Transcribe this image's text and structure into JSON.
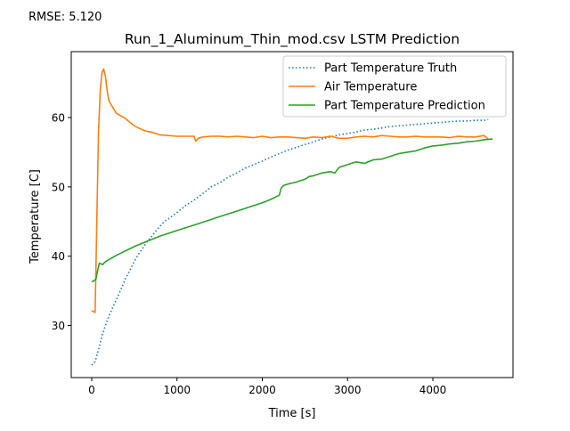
{
  "annotation": "RMSE: 5.120",
  "chart_data": {
    "type": "line",
    "title": "Run_1_Aluminum_Thin_mod.csv LSTM Prediction",
    "xlabel": "Time [s]",
    "ylabel": "Temperature [C]",
    "xlim": [
      -240,
      4940
    ],
    "ylim": [
      22.5,
      69.5
    ],
    "xticks": [
      0,
      1000,
      2000,
      3000,
      4000
    ],
    "yticks": [
      30,
      40,
      50,
      60
    ],
    "legend_position": "top-right",
    "grid": false,
    "series": [
      {
        "name": "Part Temperature Truth",
        "color": "#1f77b4",
        "style": "dotted",
        "x": [
          0,
          40,
          80,
          120,
          160,
          200,
          250,
          300,
          350,
          400,
          450,
          500,
          550,
          600,
          650,
          700,
          750,
          800,
          850,
          900,
          1000,
          1100,
          1200,
          1300,
          1400,
          1500,
          1600,
          1700,
          1800,
          1900,
          2000,
          2100,
          2200,
          2300,
          2400,
          2500,
          2600,
          2700,
          2800,
          2900,
          3000,
          3100,
          3200,
          3300,
          3400,
          3500,
          3600,
          3700,
          3800,
          3900,
          4000,
          4100,
          4200,
          4300,
          4400,
          4500,
          4600,
          4650
        ],
        "y": [
          24.3,
          24.8,
          26.5,
          28.5,
          30.0,
          31.3,
          32.7,
          34.0,
          35.4,
          36.9,
          38.0,
          39.3,
          40.3,
          41.2,
          42.1,
          42.8,
          43.6,
          44.3,
          45.0,
          45.4,
          46.3,
          47.3,
          48.1,
          49.0,
          50.0,
          50.6,
          51.4,
          52.0,
          52.7,
          53.2,
          53.7,
          54.3,
          54.8,
          55.3,
          55.7,
          56.1,
          56.5,
          56.9,
          57.2,
          57.5,
          57.7,
          57.9,
          58.2,
          58.3,
          58.5,
          58.7,
          58.8,
          58.9,
          59.0,
          59.1,
          59.2,
          59.3,
          59.4,
          59.5,
          59.5,
          59.6,
          59.6,
          59.7
        ]
      },
      {
        "name": "Air Temperature",
        "color": "#ff7f0e",
        "style": "solid",
        "x": [
          0,
          20,
          40,
          60,
          80,
          100,
          120,
          140,
          160,
          180,
          200,
          230,
          260,
          290,
          320,
          350,
          380,
          410,
          440,
          470,
          500,
          550,
          600,
          650,
          700,
          750,
          800,
          900,
          1000,
          1100,
          1200,
          1220,
          1250,
          1300,
          1400,
          1500,
          1600,
          1700,
          1800,
          1900,
          2000,
          2100,
          2200,
          2300,
          2400,
          2500,
          2600,
          2700,
          2800,
          2900,
          3000,
          3100,
          3200,
          3300,
          3400,
          3500,
          3600,
          3700,
          3800,
          3900,
          4000,
          4100,
          4200,
          4300,
          4400,
          4500,
          4600,
          4650
        ],
        "y": [
          32.2,
          32.0,
          31.9,
          45.0,
          58.0,
          64.0,
          66.5,
          67.0,
          66.0,
          64.0,
          62.5,
          61.8,
          61.2,
          60.6,
          60.4,
          60.2,
          60.0,
          59.7,
          59.4,
          59.1,
          58.8,
          58.5,
          58.2,
          58.0,
          57.9,
          57.7,
          57.5,
          57.4,
          57.3,
          57.3,
          57.3,
          56.6,
          57.0,
          57.2,
          57.3,
          57.3,
          57.2,
          57.3,
          57.2,
          57.1,
          57.3,
          57.1,
          57.2,
          57.2,
          57.1,
          57.0,
          57.2,
          57.1,
          57.3,
          57.0,
          57.0,
          57.2,
          57.3,
          57.2,
          57.4,
          57.3,
          57.2,
          57.2,
          57.3,
          57.2,
          57.2,
          57.2,
          57.1,
          57.3,
          57.2,
          57.2,
          57.4,
          56.9
        ]
      },
      {
        "name": "Part Temperature Prediction",
        "color": "#2ca02c",
        "style": "solid",
        "x": [
          0,
          30,
          50,
          70,
          90,
          110,
          130,
          150,
          200,
          300,
          400,
          500,
          600,
          700,
          800,
          900,
          1000,
          1100,
          1200,
          1300,
          1400,
          1500,
          1600,
          1700,
          1800,
          1900,
          2000,
          2100,
          2200,
          2220,
          2250,
          2300,
          2400,
          2500,
          2550,
          2600,
          2700,
          2800,
          2850,
          2900,
          3000,
          3100,
          3200,
          3300,
          3400,
          3500,
          3600,
          3700,
          3800,
          3900,
          4000,
          4100,
          4200,
          4300,
          4400,
          4500,
          4600,
          4700
        ],
        "y": [
          36.3,
          36.5,
          36.7,
          38.0,
          39.0,
          38.9,
          38.8,
          39.1,
          39.5,
          40.2,
          40.8,
          41.4,
          41.9,
          42.4,
          42.9,
          43.3,
          43.7,
          44.1,
          44.5,
          44.9,
          45.3,
          45.7,
          46.1,
          46.5,
          46.9,
          47.3,
          47.7,
          48.2,
          48.8,
          49.8,
          50.2,
          50.4,
          50.7,
          51.1,
          51.5,
          51.6,
          52.0,
          52.2,
          52.0,
          52.8,
          53.2,
          53.6,
          53.4,
          53.9,
          54.0,
          54.4,
          54.8,
          55.0,
          55.2,
          55.6,
          55.9,
          56.0,
          56.2,
          56.3,
          56.5,
          56.6,
          56.8,
          56.9
        ]
      }
    ]
  }
}
